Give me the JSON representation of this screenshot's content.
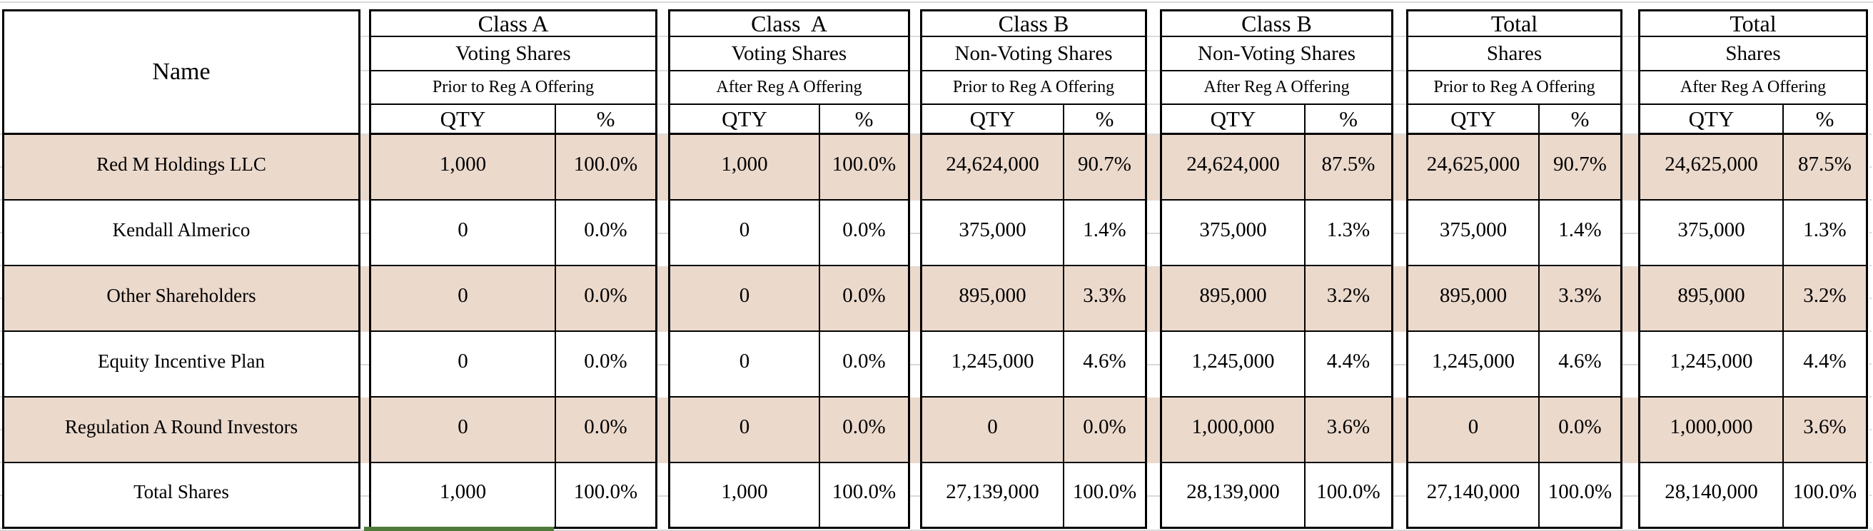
{
  "table": {
    "name_header": "Name",
    "col_headers": {
      "qty": "QTY",
      "pct": "%"
    },
    "groups": [
      {
        "title": "Class A",
        "subtitle": "Voting Shares",
        "period": "Prior to Reg A Offering"
      },
      {
        "title": "Class  A",
        "subtitle": "Voting Shares",
        "period": "After Reg A Offering"
      },
      {
        "title": "Class B",
        "subtitle": "Non-Voting Shares",
        "period": "Prior to Reg A Offering"
      },
      {
        "title": "Class B",
        "subtitle": "Non-Voting Shares",
        "period": "After Reg A Offering"
      },
      {
        "title": "Total",
        "subtitle": "Shares",
        "period": "Prior to Reg A Offering"
      },
      {
        "title": "Total",
        "subtitle": "Shares",
        "period": "After Reg A Offering"
      }
    ],
    "rows": [
      {
        "name": "Red M Holdings LLC",
        "shaded": true,
        "values": [
          "1,000",
          "100.0%",
          "1,000",
          "100.0%",
          "24,624,000",
          "90.7%",
          "24,624,000",
          "87.5%",
          "24,625,000",
          "90.7%",
          "24,625,000",
          "87.5%"
        ]
      },
      {
        "name": "Kendall Almerico",
        "shaded": false,
        "values": [
          "0",
          "0.0%",
          "0",
          "0.0%",
          "375,000",
          "1.4%",
          "375,000",
          "1.3%",
          "375,000",
          "1.4%",
          "375,000",
          "1.3%"
        ]
      },
      {
        "name": "Other Shareholders",
        "shaded": true,
        "values": [
          "0",
          "0.0%",
          "0",
          "0.0%",
          "895,000",
          "3.3%",
          "895,000",
          "3.2%",
          "895,000",
          "3.3%",
          "895,000",
          "3.2%"
        ]
      },
      {
        "name": "Equity Incentive Plan",
        "shaded": false,
        "values": [
          "0",
          "0.0%",
          "0",
          "0.0%",
          "1,245,000",
          "4.6%",
          "1,245,000",
          "4.4%",
          "1,245,000",
          "4.6%",
          "1,245,000",
          "4.4%"
        ]
      },
      {
        "name": "Regulation A Round Investors",
        "shaded": true,
        "values": [
          "0",
          "0.0%",
          "0",
          "0.0%",
          "0",
          "0.0%",
          "1,000,000",
          "3.6%",
          "0",
          "0.0%",
          "1,000,000",
          "3.6%"
        ]
      },
      {
        "name": "Total Shares",
        "shaded": false,
        "values": [
          "1,000",
          "100.0%",
          "1,000",
          "100.0%",
          "27,139,000",
          "100.0%",
          "28,139,000",
          "100.0%",
          "27,140,000",
          "100.0%",
          "28,140,000",
          "100.0%"
        ]
      }
    ],
    "colors": {
      "row_shade": "#ebd9cc",
      "border": "#000000",
      "gridline": "#d9d9d9",
      "selection_green": "#4e7b3a"
    }
  }
}
